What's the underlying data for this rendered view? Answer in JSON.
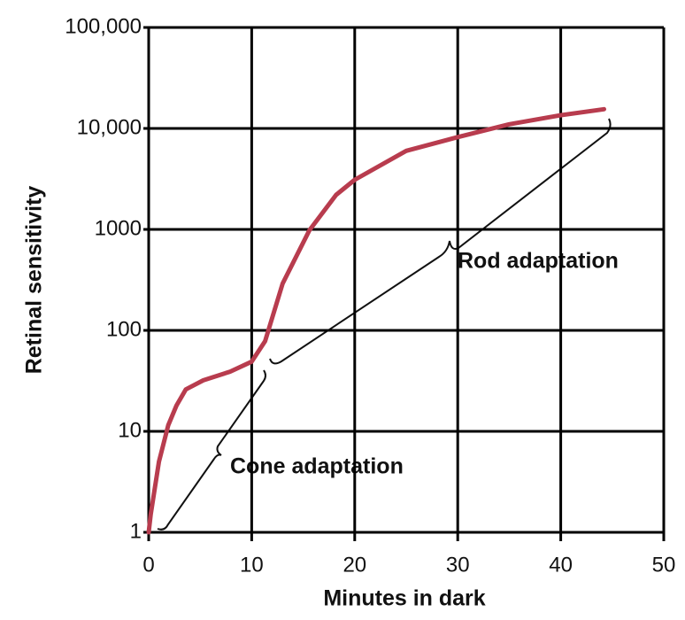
{
  "chart_data": {
    "type": "line",
    "x_label": "Minutes in dark",
    "y_label": "Retinal sensitivity",
    "log_y": true,
    "grid": true,
    "xlim": [
      0,
      50
    ],
    "xticks": [
      0,
      10,
      20,
      30,
      40,
      50
    ],
    "ylim": [
      1,
      100000
    ],
    "yticks": [
      1,
      10,
      100,
      1000,
      {
        "value": 10000,
        "label": "10,000"
      },
      {
        "value": 100000,
        "label": "100,000"
      }
    ],
    "series": [
      {
        "color": "#b83c4e",
        "x": [
          0,
          0.2,
          1,
          1.9,
          2.7,
          3.6,
          5.3,
          7.9,
          10,
          11.3,
          13,
          15.6,
          18.2,
          20,
          25,
          30,
          35,
          40,
          44.2
        ],
        "values": [
          1,
          1.5,
          5,
          11.5,
          18,
          26,
          32,
          39,
          49,
          78,
          290,
          980,
          2200,
          3100,
          6000,
          8200,
          11000,
          13500,
          15500
        ]
      }
    ],
    "annotations": [
      "Cone adaptation",
      "Rod adaptation"
    ]
  }
}
